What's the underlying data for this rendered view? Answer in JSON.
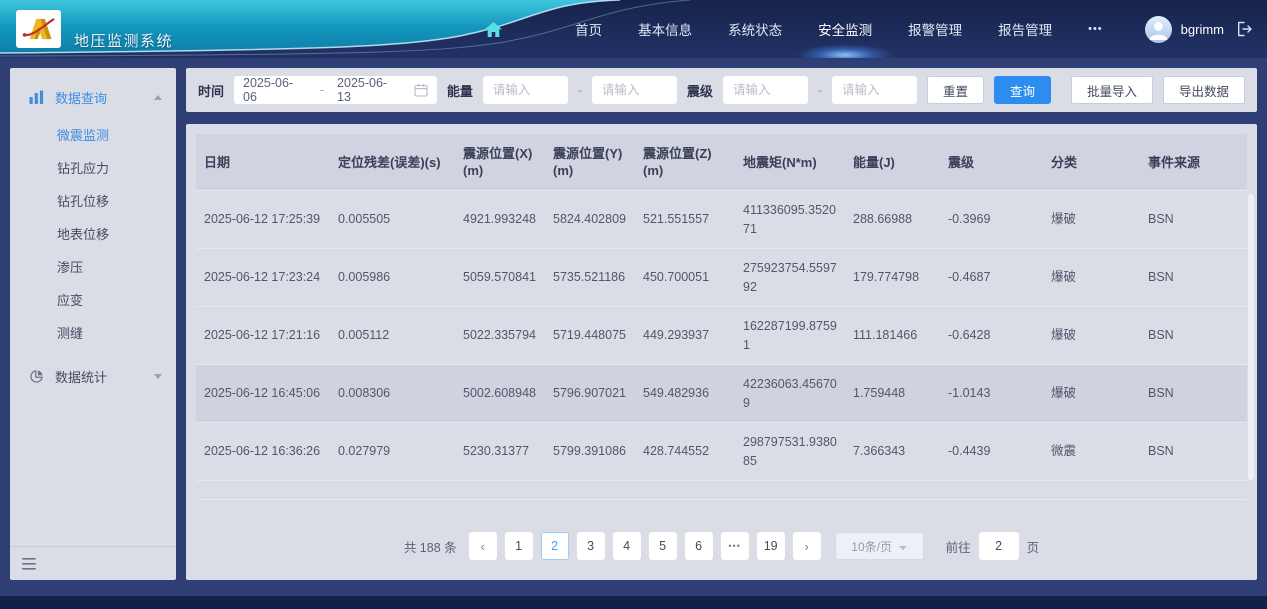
{
  "app": {
    "title": "地压监测系统"
  },
  "header": {
    "nav_items": [
      {
        "label": "首页",
        "active": false
      },
      {
        "label": "基本信息",
        "active": false
      },
      {
        "label": "系统状态",
        "active": false
      },
      {
        "label": "安全监测",
        "active": true
      },
      {
        "label": "报警管理",
        "active": false
      },
      {
        "label": "报告管理",
        "active": false
      },
      {
        "label": "•••",
        "active": false
      }
    ],
    "username": "bgrimm"
  },
  "sidebar": {
    "groups": [
      {
        "label": "数据查询",
        "icon": "bar-chart-icon",
        "expanded": true,
        "active": true,
        "items": [
          {
            "label": "微震监测",
            "active": true
          },
          {
            "label": "钻孔应力",
            "active": false
          },
          {
            "label": "钻孔位移",
            "active": false
          },
          {
            "label": "地表位移",
            "active": false
          },
          {
            "label": "渗压",
            "active": false
          },
          {
            "label": "应变",
            "active": false
          },
          {
            "label": "测缝",
            "active": false
          }
        ]
      },
      {
        "label": "数据统计",
        "icon": "pie-chart-icon",
        "expanded": false,
        "active": false,
        "items": []
      }
    ]
  },
  "filters": {
    "time_label": "时间",
    "date_start": "2025-06-06",
    "range_separator": "-",
    "date_end": "2025-06-13",
    "energy_label": "能量",
    "energy_placeholder": "请输入",
    "magnitude_label": "震级",
    "magnitude_placeholder": "请输入",
    "reset_button": "重置",
    "query_button": "查询",
    "batch_import_button": "批量导入",
    "export_button": "导出数据"
  },
  "table": {
    "columns": [
      "日期",
      "定位残差(误差)(s)",
      "震源位置(X)(m)",
      "震源位置(Y)(m)",
      "震源位置(Z)(m)",
      "地震矩(N*m)",
      "能量(J)",
      "震级",
      "分类",
      "事件来源"
    ],
    "rows": [
      [
        "2025-06-12 17:25:39",
        "0.005505",
        "4921.993248",
        "5824.402809",
        "521.551557",
        "411336095.352071",
        "288.66988",
        "-0.3969",
        "爆破",
        "BSN"
      ],
      [
        "2025-06-12 17:23:24",
        "0.005986",
        "5059.570841",
        "5735.521186",
        "450.700051",
        "275923754.559792",
        "179.774798",
        "-0.4687",
        "爆破",
        "BSN"
      ],
      [
        "2025-06-12 17:21:16",
        "0.005112",
        "5022.335794",
        "5719.448075",
        "449.293937",
        "162287199.87591",
        "111.181466",
        "-0.6428",
        "爆破",
        "BSN"
      ],
      [
        "2025-06-12 16:45:06",
        "0.008306",
        "5002.608948",
        "5796.907021",
        "549.482936",
        "42236063.456709",
        "1.759448",
        "-1.0143",
        "爆破",
        "BSN"
      ],
      [
        "2025-06-12 16:36:26",
        "0.027979",
        "5230.31377",
        "5799.391086",
        "428.744552",
        "298797531.938085",
        "7.366343",
        "-0.4439",
        "微震",
        "BSN"
      ]
    ],
    "highlighted_row_index": 3
  },
  "pagination": {
    "total_text": "共 188 条",
    "prev_label": "‹",
    "next_label": "›",
    "pages": [
      "1",
      "2",
      "3",
      "4",
      "5",
      "6",
      "...",
      "19"
    ],
    "active_page": "2",
    "page_size": "10条/页",
    "goto_label": "前往",
    "goto_value": "2",
    "goto_suffix": "页"
  },
  "colors": {
    "primary_blue": "#2d8cf0",
    "active_page_blue": "#409eff",
    "header_teal": "#17a0c4",
    "header_navy": "#1a2854",
    "panel_bg": "#dbdde6"
  }
}
